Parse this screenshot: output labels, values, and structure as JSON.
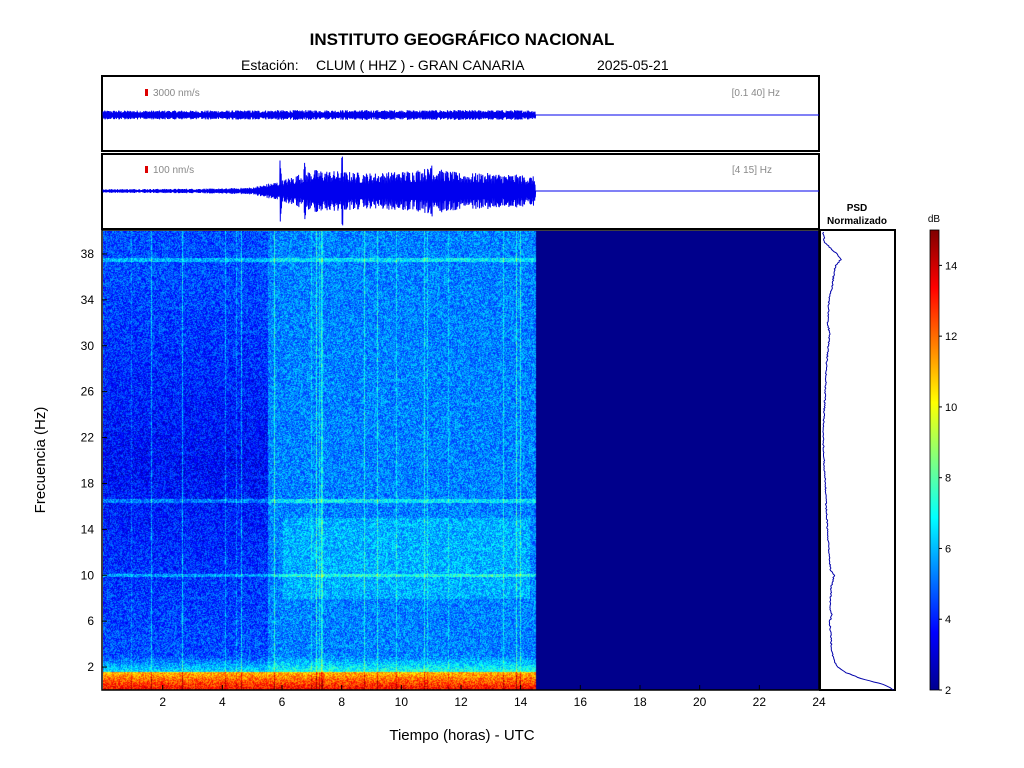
{
  "header": {
    "title": "INSTITUTO GEOGRÁFICO NACIONAL",
    "station_label": "Estación:",
    "station": "CLUM ( HHZ ) - GRAN CANARIA",
    "date": "2025-05-21"
  },
  "chart_data": [
    {
      "type": "line",
      "panel": "seismogram-broadband",
      "scale_label": "3000 nm/s",
      "filter_label": "[0.1 40] Hz",
      "x_range": [
        0,
        24
      ],
      "data_end_hour": 14.5,
      "amplitude_profile": {
        "x": [
          0,
          2,
          4,
          6,
          8,
          10,
          12,
          14.5
        ],
        "y": [
          0.25,
          0.25,
          0.25,
          0.27,
          0.27,
          0.27,
          0.27,
          0.27
        ]
      },
      "color": "#0000ee"
    },
    {
      "type": "line",
      "panel": "seismogram-filtered",
      "scale_label": "100 nm/s",
      "filter_label": "[4 15] Hz",
      "x_range": [
        0,
        24
      ],
      "data_end_hour": 14.5,
      "amplitude_profile": {
        "x": [
          0,
          2,
          4,
          5,
          5.5,
          6,
          6.5,
          7,
          8,
          9,
          10,
          11,
          12,
          13,
          14,
          14.5
        ],
        "y": [
          0.05,
          0.06,
          0.07,
          0.1,
          0.2,
          0.3,
          0.45,
          0.6,
          0.55,
          0.5,
          0.55,
          0.65,
          0.5,
          0.5,
          0.45,
          0.4
        ]
      },
      "spikes": [
        {
          "x": 5.95,
          "y": 0.9
        },
        {
          "x": 6.75,
          "y": 0.8
        },
        {
          "x": 8.0,
          "y": 1.0
        },
        {
          "x": 11.0,
          "y": 0.95
        }
      ],
      "color": "#0000ee"
    },
    {
      "type": "heatmap",
      "panel": "spectrogram",
      "xlabel": "Tiempo (horas) - UTC",
      "ylabel": "Frecuencia  (Hz)",
      "xlim": [
        0,
        24
      ],
      "ylim": [
        0,
        40
      ],
      "x_ticks": [
        2,
        4,
        6,
        8,
        10,
        12,
        14,
        16,
        18,
        20,
        22,
        24
      ],
      "y_ticks": [
        2,
        6,
        10,
        14,
        18,
        22,
        26,
        30,
        34,
        38
      ],
      "data_end_hour": 14.5,
      "no_data_color": "#00008c",
      "colorbar": {
        "unit": "dB",
        "range": [
          2,
          15
        ],
        "ticks": [
          2,
          4,
          6,
          8,
          10,
          12,
          14
        ]
      },
      "spectral_lines_hz": [
        10,
        16.5,
        37.5
      ],
      "band_low_hz": [
        0,
        1.5
      ]
    },
    {
      "type": "line",
      "panel": "psd",
      "title_line1": "PSD",
      "title_line2": "Normalizado",
      "freq_hz": [
        0,
        0.5,
        1,
        1.5,
        2,
        3,
        4,
        5,
        6,
        6.5,
        7,
        8,
        9,
        10,
        10.5,
        11,
        12,
        13,
        14,
        16,
        18,
        20,
        22,
        24,
        26,
        28,
        30,
        31,
        32,
        34,
        35,
        36,
        37,
        37.5,
        38,
        39,
        40
      ],
      "value": [
        1.0,
        0.85,
        0.55,
        0.35,
        0.22,
        0.16,
        0.14,
        0.13,
        0.12,
        0.15,
        0.12,
        0.13,
        0.14,
        0.18,
        0.13,
        0.12,
        0.11,
        0.1,
        0.09,
        0.07,
        0.06,
        0.04,
        0.03,
        0.04,
        0.06,
        0.07,
        0.1,
        0.12,
        0.09,
        0.11,
        0.15,
        0.17,
        0.2,
        0.27,
        0.22,
        0.05,
        0.03
      ],
      "color": "#0000aa"
    }
  ]
}
